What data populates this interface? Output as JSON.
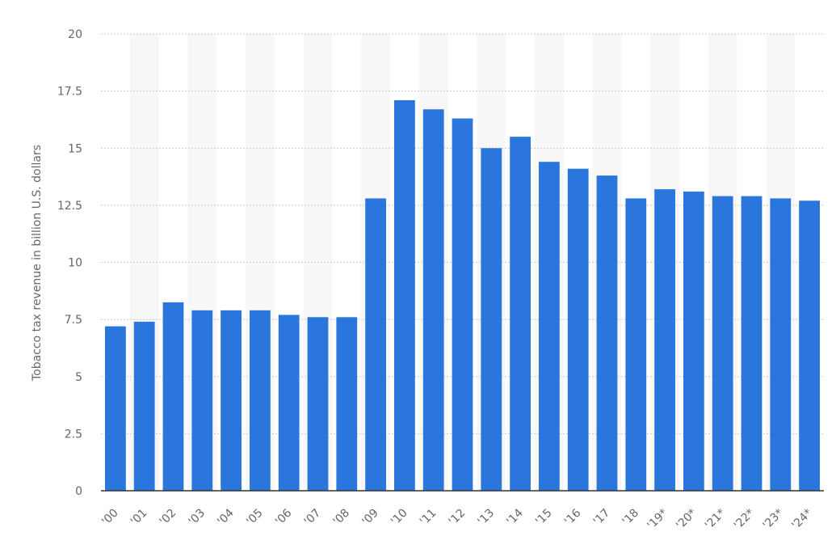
{
  "chart_data": {
    "type": "bar",
    "y_label": "Tobacco tax revenue in billion U.S. dollars",
    "categories": [
      "'00",
      "'01",
      "'02",
      "'03",
      "'04",
      "'05",
      "'06",
      "'07",
      "'08",
      "'09",
      "'10",
      "'11",
      "'12",
      "'13",
      "'14",
      "'15",
      "'16",
      "'17",
      "'18",
      "'19*",
      "'20*",
      "'21*",
      "'22*",
      "'23*",
      "'24*"
    ],
    "values": [
      7.2,
      7.4,
      8.25,
      7.9,
      7.9,
      7.9,
      7.7,
      7.6,
      7.6,
      12.8,
      17.1,
      16.7,
      16.3,
      15.0,
      15.5,
      14.4,
      14.1,
      13.8,
      12.8,
      13.2,
      13.1,
      12.9,
      12.9,
      12.8,
      12.7
    ],
    "color": "#2a76dd",
    "ylim": [
      0,
      20
    ],
    "yticks": [
      0,
      2.5,
      5,
      7.5,
      10,
      12.5,
      15,
      17.5,
      20
    ],
    "grid": true
  }
}
